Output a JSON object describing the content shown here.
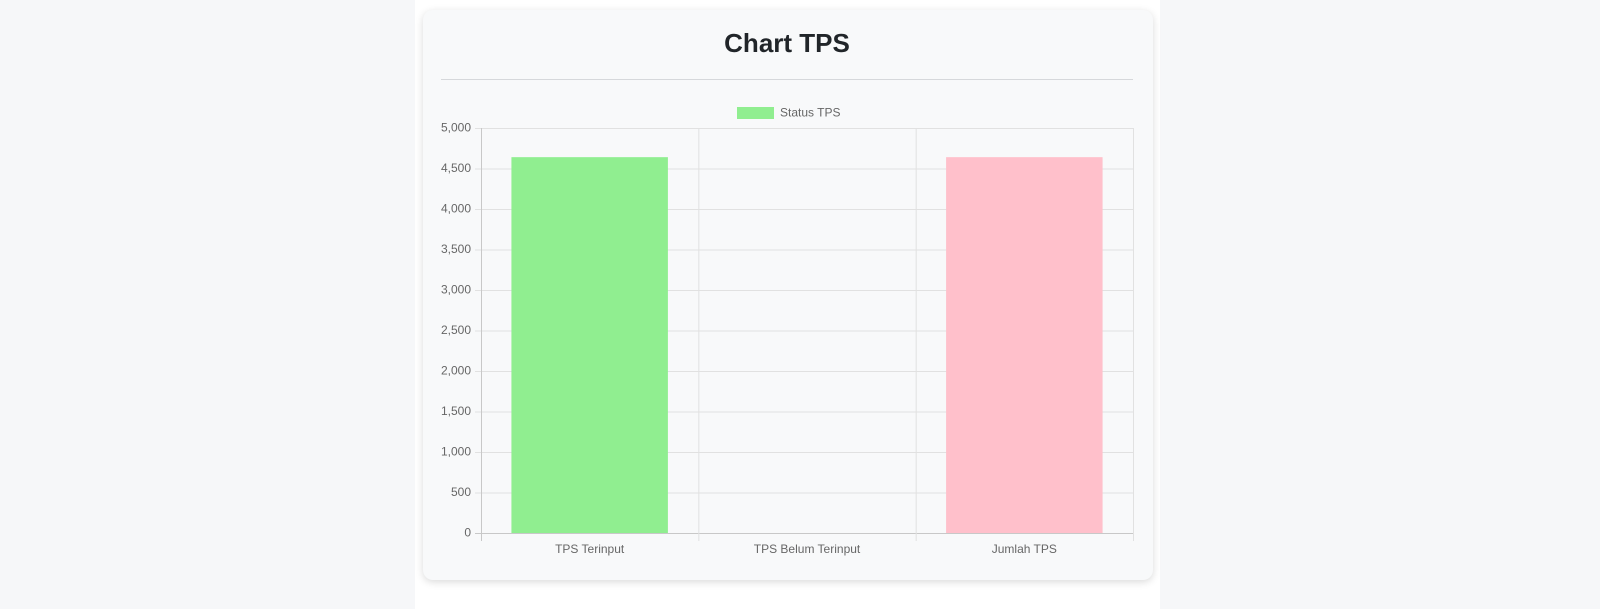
{
  "chart_data": {
    "type": "bar",
    "title": "Chart TPS",
    "categories": [
      "TPS Terinput",
      "TPS Belum Terinput",
      "Jumlah TPS"
    ],
    "series": [
      {
        "name": "Status TPS",
        "color": "#90ee90",
        "colors": [
          "#90ee90",
          "#90ee90",
          "#ffc0cb"
        ],
        "values": [
          4640,
          0,
          4640
        ]
      }
    ],
    "ylim": [
      0,
      5000
    ],
    "yticks": [
      0,
      500,
      {
        "value": 1000,
        "label": "1,000"
      },
      {
        "value": 1500,
        "label": "1,500"
      },
      {
        "value": 2000,
        "label": "2,000"
      },
      {
        "value": 2500,
        "label": "2,500"
      },
      {
        "value": 3000,
        "label": "3,000"
      },
      {
        "value": 3500,
        "label": "3,500"
      },
      {
        "value": 4000,
        "label": "4,000"
      },
      {
        "value": 4500,
        "label": "4,500"
      },
      {
        "value": 5000,
        "label": "5,000"
      }
    ],
    "grid": true,
    "legend": "top"
  }
}
